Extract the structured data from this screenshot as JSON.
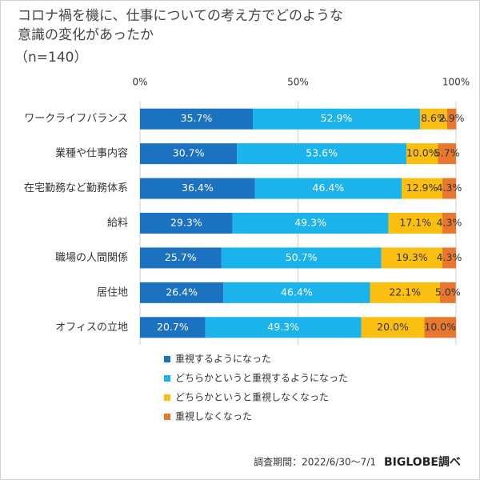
{
  "chart_data": {
    "type": "stacked-bar-horizontal",
    "title": "コロナ禍を機に、仕事についての考え方でどのような意識の変化があったか",
    "subtitle": "（n=140）",
    "categories": [
      "ワークライフバランス",
      "業種や仕事内容",
      "在宅勤務など勤務体系",
      "給料",
      "職場の人間関係",
      "居住地",
      "オフィスの立地"
    ],
    "series": [
      {
        "name": "重視するようになった",
        "color": "#1b72c1",
        "values": [
          35.7,
          30.7,
          36.4,
          29.3,
          25.7,
          26.4,
          20.7
        ],
        "value_labels": [
          "35.7%",
          "30.7%",
          "36.4%",
          "29.3%",
          "25.7%",
          "26.4%",
          "20.7%"
        ]
      },
      {
        "name": "どちらかというと重視するようになった",
        "color": "#1ab3ec",
        "values": [
          52.9,
          53.6,
          46.4,
          49.3,
          50.7,
          46.4,
          49.3
        ],
        "value_labels": [
          "52.9%",
          "53.6%",
          "46.4%",
          "49.3%",
          "50.7%",
          "46.4%",
          "49.3%"
        ]
      },
      {
        "name": "どちらかというと重視しなくなった",
        "color": "#fbbf12",
        "values": [
          8.6,
          10.0,
          12.9,
          17.1,
          19.3,
          22.1,
          20.0
        ],
        "value_labels": [
          "8.6%",
          "10.0%",
          "12.9%",
          "17.1%",
          "19.3%",
          "22.1%",
          "20.0%"
        ]
      },
      {
        "name": "重視しなくなった",
        "color": "#e8782f",
        "values": [
          2.9,
          5.7,
          4.3,
          4.3,
          4.3,
          5.0,
          10.0
        ],
        "value_labels": [
          "2.9%",
          "5.7%",
          "4.3%",
          "4.3%",
          "4.3%",
          "5.0%",
          "10.0%"
        ]
      }
    ],
    "xlim": [
      0,
      100
    ],
    "xticks": [
      {
        "value": 0,
        "label": "0%"
      },
      {
        "value": 50,
        "label": "50%"
      },
      {
        "value": 100,
        "label": "100%"
      }
    ],
    "grid": true,
    "note": "調査期間：2022/6/30〜7/1",
    "source": "BIGLOBE調べ"
  }
}
